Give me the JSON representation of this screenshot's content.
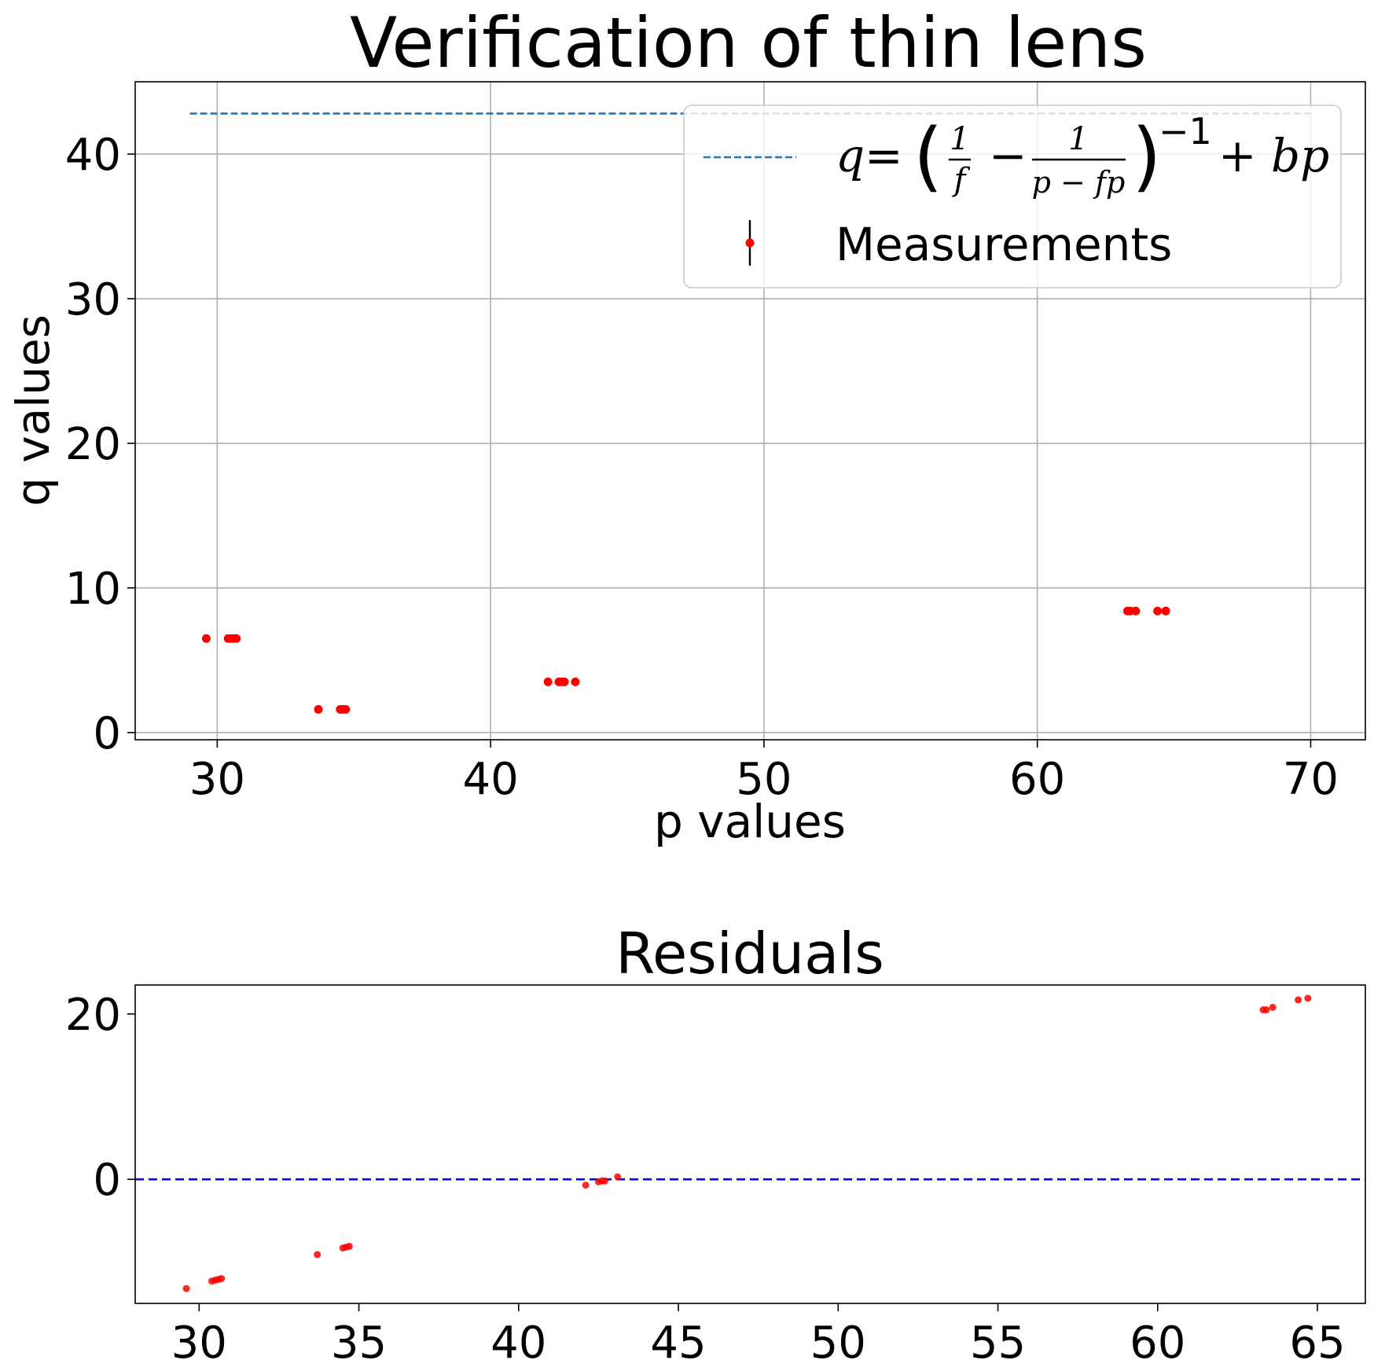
{
  "chart_data": [
    {
      "type": "scatter",
      "title": "Verification of thin lens",
      "xlabel": "p values",
      "ylabel": "q values",
      "xlim": [
        27,
        72
      ],
      "ylim": [
        -0.5,
        45
      ],
      "x_ticks": [
        30,
        40,
        50,
        60,
        70
      ],
      "y_ticks": [
        0,
        10,
        20,
        30,
        40
      ],
      "grid": true,
      "legend_position": "top-right",
      "series": [
        {
          "name": "q = (1/f − 1/(p − fp))^−1 + bp",
          "style": "dashed-line",
          "color": "#1f77b4",
          "x": [
            29,
            70
          ],
          "y": [
            42.8,
            42.8
          ]
        },
        {
          "name": "Measurements",
          "style": "markers-with-errorbars",
          "color": "#ff0000",
          "x": [
            29.6,
            30.4,
            30.5,
            30.6,
            30.7,
            33.7,
            34.5,
            34.6,
            34.7,
            42.1,
            42.5,
            42.6,
            42.7,
            43.1,
            63.3,
            63.4,
            63.6,
            64.4,
            64.7
          ],
          "y": [
            6.5,
            6.5,
            6.5,
            6.5,
            6.5,
            1.6,
            1.6,
            1.6,
            1.6,
            3.5,
            3.5,
            3.5,
            3.5,
            3.5,
            8.4,
            8.4,
            8.4,
            8.4,
            8.4
          ]
        }
      ],
      "legend": {
        "line_label": {
          "q": "q",
          "eq": "=",
          "one_a": "1",
          "f": "f",
          "minus": "−",
          "one_b": "1",
          "den": "p − fp",
          "exp": "−1",
          "plus_bp": "+ bp"
        },
        "markers_label": "Measurements"
      }
    },
    {
      "type": "scatter",
      "title": "Residuals",
      "xlabel": "",
      "ylabel": "",
      "xlim": [
        28,
        66.5
      ],
      "ylim": [
        -15,
        23.5
      ],
      "x_ticks": [
        30,
        35,
        40,
        45,
        50,
        55,
        60,
        65
      ],
      "y_ticks": [
        0,
        20
      ],
      "grid": false,
      "zero_line": {
        "y": 0,
        "style": "dashed",
        "color": "#0000ff"
      },
      "series": [
        {
          "color": "#ff0000",
          "x": [
            29.6,
            30.4,
            30.5,
            30.6,
            30.7,
            33.7,
            34.5,
            34.6,
            34.7,
            42.1,
            42.5,
            42.6,
            42.7,
            43.1,
            63.3,
            63.4,
            63.6,
            64.4,
            64.7
          ],
          "y": [
            -13.2,
            -12.3,
            -12.2,
            -12.1,
            -12.0,
            -9.1,
            -8.3,
            -8.2,
            -8.1,
            -0.7,
            -0.3,
            -0.2,
            -0.2,
            0.3,
            20.5,
            20.5,
            20.8,
            21.7,
            21.9
          ]
        }
      ]
    }
  ]
}
